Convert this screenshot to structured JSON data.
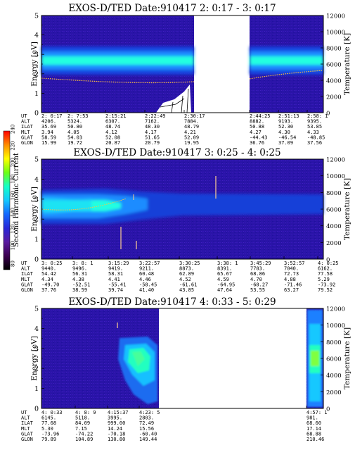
{
  "colors": {
    "background": "#2a14a8",
    "band_core": "#20ffe0",
    "band_mid": "#1a8cff",
    "band_edge": "#1444e0",
    "noise_dark": "#4a148c",
    "trace": "#ffc040"
  },
  "colorbar": {
    "label": "Second Harmonic Current",
    "ticks": [
      "240",
      "220",
      "200",
      "180",
      "160",
      "140",
      "120",
      "100",
      "80"
    ],
    "range": [
      80,
      240
    ],
    "colors": [
      "#000000",
      "#3c0050",
      "#5a1aa0",
      "#2828d8",
      "#1468ff",
      "#14c8ff",
      "#14ffc8",
      "#6cff14",
      "#ffff00",
      "#ff8c00",
      "#ff0000"
    ]
  },
  "chart_data": [
    {
      "type": "heatmap",
      "title": "EXOS-D/TED   Date:910417  2: 0:17 - 3: 0:17",
      "ylabel": "Energy [eV]",
      "ylabel_right": "Temperature [K]",
      "ylim": [
        0,
        5
      ],
      "ylim_right": [
        0,
        12000
      ],
      "yticks": [
        "0",
        "1",
        "2",
        "3",
        "4",
        "5"
      ],
      "yticks_right": [
        "0",
        "2000",
        "4000",
        "6000",
        "8000",
        "10000",
        "12000"
      ],
      "data_gap": [
        "2:30:17",
        "2:44:25"
      ],
      "band_center_ev": 2.6,
      "electron_temperature_trace_ev": {
        "start": 1.8,
        "end": 1.6
      },
      "ephemeris": {
        "labels": [
          "UT",
          "ALT",
          "ILAT",
          "MLT",
          "GLAT",
          "GLON"
        ],
        "columns": [
          [
            "2: 0:17",
            "4206.",
            "35.69",
            "3.94",
            "58.59",
            "15.99"
          ],
          [
            "2: 7:53",
            "5324.",
            "50.80",
            "4.05",
            "54.03",
            "19.72"
          ],
          [
            "2:15:21",
            "6307.",
            "48.74",
            "4.12",
            "52.08",
            "20.87"
          ],
          [
            "2:22:49",
            "7162.",
            "48.30",
            "4.17",
            "51.65",
            "20.79"
          ],
          [
            "2:30:17",
            "7884.",
            "48.79",
            "4.21",
            "52.09",
            "19.95"
          ],
          [
            "2:44:25",
            "8882.",
            "50.88",
            "4.27",
            "-44.43",
            "36.76"
          ],
          [
            "2:51:13",
            "9193.",
            "52.30",
            "4.30",
            "-46.54",
            "37.09"
          ],
          [
            "2:58: 1",
            "9395.",
            "53.85",
            "4.33",
            "-48.85",
            "37.56"
          ]
        ]
      }
    },
    {
      "type": "heatmap",
      "title": "EXOS-D/TED   Date:910417  3: 0:25 - 4: 0:25",
      "ylabel": "Energy [eV]",
      "ylabel_right": "Temperature [K]",
      "ylim": [
        0,
        5
      ],
      "ylim_right": [
        0,
        12000
      ],
      "yticks": [
        "0",
        "1",
        "2",
        "3",
        "4",
        "5"
      ],
      "yticks_right": [
        "0",
        "2000",
        "4000",
        "6000",
        "8000",
        "10000",
        "12000"
      ],
      "band_center_ev": 2.8,
      "ephemeris": {
        "labels": [
          "UT",
          "ALT",
          "ILAT",
          "MLT",
          "GLAT",
          "GLON"
        ],
        "columns": [
          [
            "3: 0:25",
            "9440.",
            "54.42",
            "4.34",
            "-49.70",
            "37.76"
          ],
          [
            "3: 8: 1",
            "9496.",
            "56.31",
            "4.38",
            "-52.51",
            "38.59"
          ],
          [
            "3:15:29",
            "9419.",
            "58.31",
            "4.41",
            "-55.41",
            "39.74"
          ],
          [
            "3:22:57",
            "9211.",
            "60.48",
            "4.46",
            "-58.45",
            "41.40"
          ],
          [
            "3:30:25",
            "8873.",
            "62.89",
            "4.52",
            "-61.61",
            "43.85"
          ],
          [
            "3:38: 1",
            "8391.",
            "65.67",
            "4.59",
            "-64.95",
            "47.64"
          ],
          [
            "3:45:29",
            "7783.",
            "68.86",
            "4.70",
            "-68.27",
            "53.55"
          ],
          [
            "3:52:57",
            "7040.",
            "72.73",
            "4.88",
            "-71.46",
            "63.27"
          ],
          [
            "4: 0:25",
            "6162.",
            "77.58",
            "5.29",
            "-73.92",
            "79.52"
          ]
        ]
      }
    },
    {
      "type": "heatmap",
      "title": "EXOS-D/TED   Date:910417  4: 0:33 - 5: 0:29",
      "ylabel": "Energy [eV]",
      "ylabel_right": "Temperature [K]",
      "ylim": [
        0,
        5
      ],
      "ylim_right": [
        0,
        12000
      ],
      "yticks": [
        "0",
        "1",
        "2",
        "3",
        "4",
        "5"
      ],
      "yticks_right": [
        "0",
        "2000",
        "4000",
        "6000",
        "8000",
        "10000",
        "12000"
      ],
      "data_gap": [
        "4:23:25",
        "4:57: 1"
      ],
      "ephemeris": {
        "labels": [
          "UT",
          "ALT",
          "ILAT",
          "MLT",
          "GLAT",
          "GLON"
        ],
        "columns": [
          [
            "4: 0:33",
            "6145.",
            "77.68",
            "5.30",
            "-73.96",
            "79.89"
          ],
          [
            "4: 8: 9",
            "5118.",
            "84.09",
            "7.15",
            "-74.22",
            "104.89"
          ],
          [
            "4:15:37",
            "3995.",
            "999.00",
            "14.24",
            "-70.18",
            "130.80"
          ],
          [
            "4:23: 5",
            "2803.",
            "72.49",
            "15.56",
            "-60.40",
            "149.44"
          ],
          [
            "4:57: 1",
            "981.",
            "68.60",
            "17.14",
            "68.88",
            "210.46"
          ]
        ]
      }
    }
  ]
}
